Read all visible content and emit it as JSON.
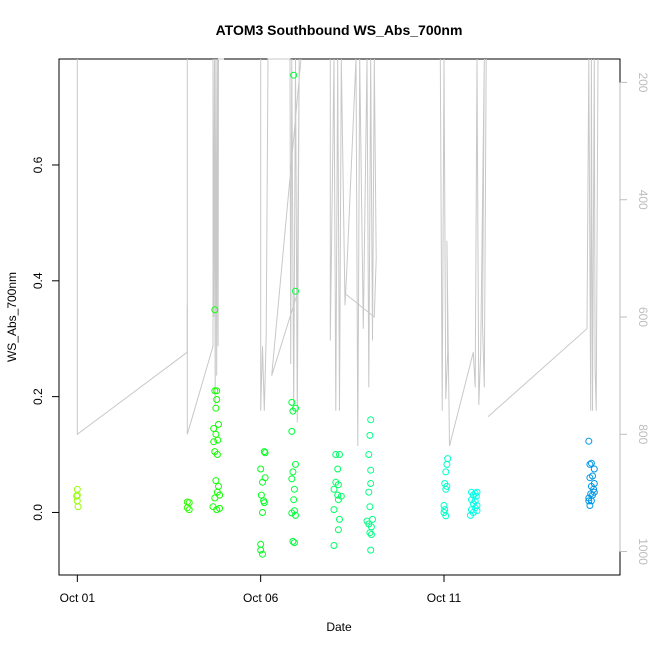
{
  "chart_data": {
    "type": "scatter",
    "title": "ATOM3 Southbound WS_Abs_700nm",
    "xlabel": "Date",
    "ylabel": "WS_Abs_700nm",
    "x_ticks": [
      {
        "day": 1,
        "label": "Oct 01"
      },
      {
        "day": 6,
        "label": "Oct 06"
      },
      {
        "day": 11,
        "label": "Oct 11"
      }
    ],
    "xlim_days": [
      0.5,
      15.8
    ],
    "ylim": [
      -0.108,
      0.783
    ],
    "y_ticks": [
      0.0,
      0.2,
      0.4,
      0.6
    ],
    "y2_axis": {
      "label": "",
      "ticks": [
        200,
        400,
        600,
        800,
        1000
      ],
      "ylim_reversed": [
        1040,
        160
      ],
      "color": "#bdbdbd"
    },
    "grid": false,
    "legend": "none",
    "point_style": "open circle, color varies with date (yellow-green to blue)",
    "line_color": "#c8c8c8",
    "points": [
      [
        1.0,
        0.04
      ],
      [
        1.0,
        0.03
      ],
      [
        1.0,
        0.02
      ],
      [
        1.02,
        0.01
      ],
      [
        0.98,
        0.028
      ],
      [
        4.0,
        0.018
      ],
      [
        4.05,
        0.017
      ],
      [
        4.0,
        0.008
      ],
      [
        4.05,
        0.005
      ],
      [
        4.75,
        0.35
      ],
      [
        4.75,
        0.21
      ],
      [
        4.8,
        0.21
      ],
      [
        4.8,
        0.195
      ],
      [
        4.78,
        0.18
      ],
      [
        4.72,
        0.145
      ],
      [
        4.85,
        0.152
      ],
      [
        4.78,
        0.135
      ],
      [
        4.83,
        0.125
      ],
      [
        4.72,
        0.122
      ],
      [
        4.75,
        0.105
      ],
      [
        4.82,
        0.1
      ],
      [
        4.78,
        0.055
      ],
      [
        4.85,
        0.045
      ],
      [
        4.82,
        0.035
      ],
      [
        4.88,
        0.03
      ],
      [
        4.75,
        0.025
      ],
      [
        4.7,
        0.01
      ],
      [
        4.8,
        0.005
      ],
      [
        4.88,
        0.007
      ],
      [
        6.0,
        0.075
      ],
      [
        6.1,
        0.105
      ],
      [
        6.12,
        0.103
      ],
      [
        6.12,
        0.06
      ],
      [
        6.05,
        0.052
      ],
      [
        6.02,
        0.03
      ],
      [
        6.08,
        0.02
      ],
      [
        6.1,
        0.017
      ],
      [
        6.05,
        0.0
      ],
      [
        6.0,
        -0.055
      ],
      [
        6.0,
        -0.065
      ],
      [
        6.05,
        -0.072
      ],
      [
        6.9,
        0.755
      ],
      [
        6.95,
        0.382
      ],
      [
        6.85,
        0.19
      ],
      [
        6.95,
        0.18
      ],
      [
        6.88,
        0.175
      ],
      [
        6.85,
        0.14
      ],
      [
        6.95,
        0.083
      ],
      [
        6.88,
        0.07
      ],
      [
        6.85,
        0.058
      ],
      [
        6.92,
        0.04
      ],
      [
        6.9,
        0.022
      ],
      [
        6.92,
        0.003
      ],
      [
        6.85,
        -0.001
      ],
      [
        6.95,
        -0.005
      ],
      [
        6.88,
        -0.05
      ],
      [
        6.92,
        -0.052
      ],
      [
        8.05,
        0.1
      ],
      [
        8.15,
        0.1
      ],
      [
        8.1,
        0.075
      ],
      [
        8.05,
        0.052
      ],
      [
        8.12,
        0.048
      ],
      [
        8.0,
        0.04
      ],
      [
        8.1,
        0.03
      ],
      [
        8.2,
        0.028
      ],
      [
        8.12,
        0.022
      ],
      [
        8.0,
        0.005
      ],
      [
        8.15,
        -0.012
      ],
      [
        8.12,
        -0.03
      ],
      [
        8.0,
        -0.057
      ],
      [
        9.0,
        0.16
      ],
      [
        8.98,
        0.133
      ],
      [
        8.95,
        0.1
      ],
      [
        9.0,
        0.073
      ],
      [
        9.0,
        0.05
      ],
      [
        8.95,
        0.035
      ],
      [
        8.98,
        0.01
      ],
      [
        8.9,
        -0.015
      ],
      [
        8.95,
        -0.02
      ],
      [
        9.05,
        -0.012
      ],
      [
        9.02,
        -0.025
      ],
      [
        8.98,
        -0.035
      ],
      [
        9.02,
        -0.038
      ],
      [
        9.0,
        -0.065
      ],
      [
        11.1,
        0.093
      ],
      [
        11.08,
        0.083
      ],
      [
        11.05,
        0.07
      ],
      [
        11.02,
        0.05
      ],
      [
        11.08,
        0.045
      ],
      [
        11.05,
        0.04
      ],
      [
        11.0,
        0.012
      ],
      [
        11.02,
        0.005
      ],
      [
        11.0,
        0.0
      ],
      [
        11.05,
        -0.006
      ],
      [
        11.75,
        0.035
      ],
      [
        11.85,
        0.033
      ],
      [
        11.9,
        0.035
      ],
      [
        11.8,
        0.03
      ],
      [
        11.88,
        0.028
      ],
      [
        11.75,
        0.022
      ],
      [
        11.85,
        0.02
      ],
      [
        11.8,
        0.015
      ],
      [
        11.9,
        0.012
      ],
      [
        11.85,
        0.008
      ],
      [
        11.75,
        0.005
      ],
      [
        11.9,
        0.003
      ],
      [
        11.8,
        0.0
      ],
      [
        11.72,
        -0.005
      ],
      [
        14.95,
        0.123
      ],
      [
        15.02,
        0.085
      ],
      [
        14.98,
        0.083
      ],
      [
        15.1,
        0.075
      ],
      [
        15.05,
        0.063
      ],
      [
        14.98,
        0.06
      ],
      [
        15.1,
        0.05
      ],
      [
        15.02,
        0.045
      ],
      [
        15.08,
        0.04
      ],
      [
        15.1,
        0.035
      ],
      [
        15.0,
        0.032
      ],
      [
        15.05,
        0.03
      ],
      [
        14.95,
        0.025
      ],
      [
        15.02,
        0.02
      ],
      [
        14.98,
        0.012
      ],
      [
        14.95,
        0.02
      ]
    ],
    "line_series": [
      [
        [
          1.0,
          160
        ],
        [
          1.0,
          800
        ],
        [
          4.0,
          660
        ],
        [
          4.0,
          160
        ]
      ],
      [
        [
          4.0,
          580
        ],
        [
          4.0,
          800
        ],
        [
          4.7,
          650
        ],
        [
          4.7,
          160
        ],
        [
          4.72,
          600
        ],
        [
          4.74,
          160
        ],
        [
          4.76,
          750
        ],
        [
          4.78,
          160
        ],
        [
          4.8,
          700
        ],
        [
          4.82,
          160
        ],
        [
          4.84,
          650
        ],
        [
          4.85,
          160
        ],
        [
          5.0,
          160
        ]
      ],
      [
        [
          6.0,
          160
        ],
        [
          6.0,
          760
        ],
        [
          6.05,
          650
        ],
        [
          6.1,
          760
        ],
        [
          6.15,
          630
        ],
        [
          6.2,
          160
        ],
        [
          6.8,
          160
        ],
        [
          6.82,
          680
        ],
        [
          6.85,
          160
        ],
        [
          6.9,
          760
        ],
        [
          6.95,
          160
        ],
        [
          7.0,
          780
        ],
        [
          7.05,
          160
        ],
        [
          7.0,
          560
        ],
        [
          6.3,
          700
        ],
        [
          7.1,
          160
        ]
      ],
      [
        [
          7.9,
          160
        ],
        [
          7.9,
          640
        ],
        [
          8.0,
          160
        ],
        [
          8.05,
          760
        ],
        [
          8.1,
          160
        ],
        [
          8.15,
          760
        ],
        [
          8.2,
          160
        ],
        [
          8.3,
          580
        ],
        [
          8.35,
          520
        ]
      ],
      [
        [
          8.35,
          520
        ],
        [
          8.6,
          160
        ],
        [
          8.65,
          820
        ],
        [
          8.7,
          160
        ],
        [
          8.8,
          620
        ],
        [
          8.9,
          160
        ],
        [
          8.95,
          720
        ],
        [
          9.0,
          160
        ],
        [
          9.05,
          640
        ],
        [
          9.1,
          160
        ],
        [
          9.15,
          500
        ],
        [
          9.1,
          600
        ],
        [
          8.3,
          560
        ]
      ],
      [
        [
          10.9,
          160
        ],
        [
          10.95,
          760
        ],
        [
          11.0,
          160
        ],
        [
          11.05,
          740
        ],
        [
          11.1,
          660
        ],
        [
          11.08,
          470
        ],
        [
          11.15,
          820
        ],
        [
          11.8,
          660
        ],
        [
          11.85,
          720
        ],
        [
          11.9,
          160
        ],
        [
          11.95,
          750
        ],
        [
          12.0,
          660
        ],
        [
          12.1,
          160
        ],
        [
          12.05,
          610
        ],
        [
          12.1,
          720
        ],
        [
          12.15,
          160
        ]
      ],
      [
        [
          12.2,
          770
        ],
        [
          14.9,
          620
        ],
        [
          14.95,
          160
        ],
        [
          15.0,
          760
        ],
        [
          15.02,
          160
        ],
        [
          15.05,
          760
        ],
        [
          15.1,
          160
        ],
        [
          15.12,
          690
        ],
        [
          15.15,
          760
        ],
        [
          15.2,
          160
        ]
      ]
    ]
  }
}
